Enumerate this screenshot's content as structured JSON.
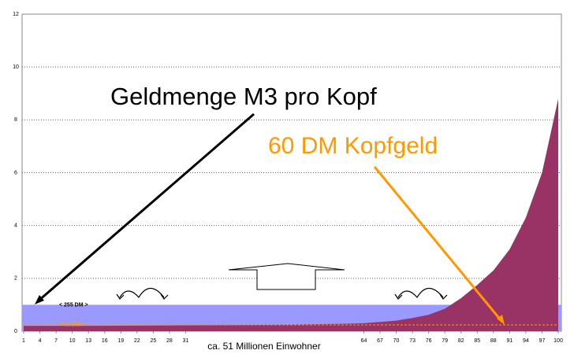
{
  "chart_data": {
    "type": "area",
    "xlabel": "ca. 51 Millionen Einwohner",
    "xlim": [
      1,
      100
    ],
    "xticks": [
      1,
      4,
      7,
      10,
      13,
      16,
      19,
      22,
      25,
      28,
      31,
      64,
      67,
      70,
      73,
      76,
      79,
      82,
      85,
      88,
      91,
      94,
      97,
      100
    ],
    "ylim": [
      0,
      12
    ],
    "yticks": [
      0,
      2,
      4,
      6,
      8,
      10,
      12
    ],
    "grid": true,
    "series": [
      {
        "color": "#993366",
        "x": [
          1,
          10,
          20,
          30,
          40,
          50,
          60,
          64,
          67,
          70,
          73,
          76,
          79,
          82,
          85,
          88,
          91,
          94,
          97,
          100
        ],
        "values": [
          0.2,
          0.2,
          0.21,
          0.22,
          0.23,
          0.25,
          0.28,
          0.3,
          0.35,
          0.4,
          0.5,
          0.62,
          0.85,
          1.25,
          1.75,
          2.3,
          3.1,
          4.3,
          6.0,
          8.8
        ]
      }
    ],
    "reference_levels": [
      {
        "label": "< 255 DM >",
        "value": 1,
        "color": "#9999ff"
      },
      {
        "label": "< 60 DM >",
        "value": 0.24,
        "color": "#ff9900"
      }
    ],
    "annotations": [
      {
        "text": "Geldmenge M3 pro Kopf",
        "color": "#000000"
      },
      {
        "text": "60 DM Kopfgeld",
        "color": "#ff9900"
      }
    ]
  }
}
